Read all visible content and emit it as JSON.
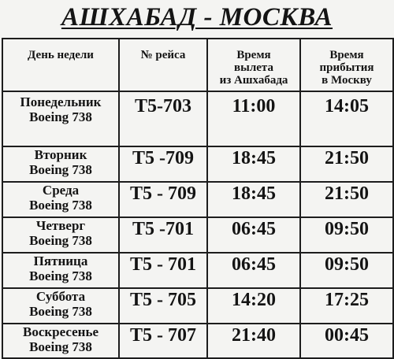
{
  "document": {
    "title": "АШХАБАД - МОСКВА"
  },
  "table": {
    "headers": {
      "day": "День недели",
      "flight": "№ рейса",
      "departure": [
        "Время",
        "вылета",
        "из Ашхабада"
      ],
      "arrival": [
        "Время",
        "прибытия",
        "в Москву"
      ]
    },
    "rows": [
      {
        "day": "Понедельник",
        "aircraft": "Boeing 738",
        "flight": "T5-703",
        "departure": "11:00",
        "arrival": "14:05"
      },
      {
        "day": "Вторник",
        "aircraft": "Boeing 738",
        "flight": "T5 -709",
        "departure": "18:45",
        "arrival": "21:50"
      },
      {
        "day": "Среда",
        "aircraft": "Boeing 738",
        "flight": "T5 - 709",
        "departure": "18:45",
        "arrival": "21:50"
      },
      {
        "day": "Четверг",
        "aircraft": "Boeing 738",
        "flight": "T5 -701",
        "departure": "06:45",
        "arrival": "09:50"
      },
      {
        "day": "Пятница",
        "aircraft": "Boeing 738",
        "flight": "T5 - 701",
        "departure": "06:45",
        "arrival": "09:50"
      },
      {
        "day": "Суббота",
        "aircraft": "Boeing 738",
        "flight": "T5 - 705",
        "departure": "14:20",
        "arrival": "17:25"
      },
      {
        "day": "Воскресенье",
        "aircraft": "Boeing 738",
        "flight": "T5 - 707",
        "departure": "21:40",
        "arrival": "00:45"
      }
    ]
  }
}
